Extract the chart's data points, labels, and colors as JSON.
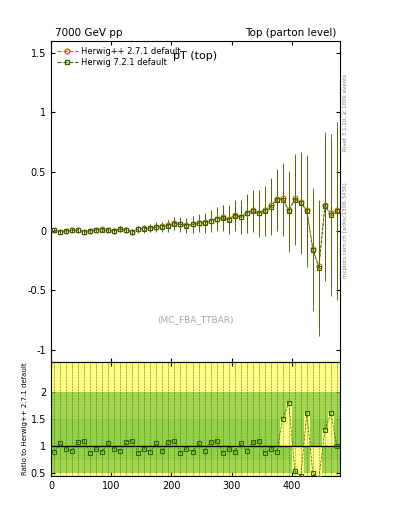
{
  "title_left": "7000 GeV pp",
  "title_right": "Top (parton level)",
  "plot_title": "pT (top)",
  "watermark": "(MC_FBA_TTBAR)",
  "right_label": "mcplots.cern.ch [arXiv:1306.3436]",
  "rivet_label": "Rivet 3.1.10, ≥ 100k events",
  "ylabel_ratio": "Ratio to Herwig++ 2.7.1 default",
  "ylim_main": [
    -1.1,
    1.6
  ],
  "ylim_ratio": [
    0.45,
    2.55
  ],
  "xlim": [
    0,
    480
  ],
  "yticks_main": [
    -1,
    -0.5,
    0,
    0.5,
    1,
    1.5
  ],
  "yticks_ratio": [
    0.5,
    1,
    1.5,
    2
  ],
  "series1_color": "#cc6600",
  "series2_color": "#336600",
  "series1_label": "Herwig++ 2.7.1 default",
  "series2_label": "Herwig 7.2.1 default",
  "band_yellow": "#ffff88",
  "band_green": "#88cc44",
  "x_values": [
    5,
    15,
    25,
    35,
    45,
    55,
    65,
    75,
    85,
    95,
    105,
    115,
    125,
    135,
    145,
    155,
    165,
    175,
    185,
    195,
    205,
    215,
    225,
    235,
    245,
    255,
    265,
    275,
    285,
    295,
    305,
    315,
    325,
    335,
    345,
    355,
    365,
    375,
    385,
    395,
    405,
    415,
    425,
    435,
    445,
    455,
    465,
    475
  ],
  "s1_y": [
    0.01,
    -0.005,
    0.002,
    0.008,
    0.005,
    -0.008,
    0.003,
    0.01,
    0.015,
    0.005,
    0.003,
    0.018,
    0.012,
    -0.008,
    0.018,
    0.022,
    0.028,
    0.035,
    0.038,
    0.048,
    0.065,
    0.058,
    0.048,
    0.058,
    0.068,
    0.072,
    0.088,
    0.105,
    0.115,
    0.098,
    0.135,
    0.118,
    0.155,
    0.175,
    0.155,
    0.178,
    0.215,
    0.272,
    0.275,
    0.178,
    0.275,
    0.245,
    0.178,
    -0.148,
    -0.298,
    0.218,
    0.148,
    0.178
  ],
  "s1_yerr": [
    0.018,
    0.015,
    0.015,
    0.015,
    0.015,
    0.015,
    0.015,
    0.018,
    0.018,
    0.018,
    0.02,
    0.022,
    0.022,
    0.025,
    0.028,
    0.03,
    0.033,
    0.036,
    0.04,
    0.045,
    0.05,
    0.055,
    0.06,
    0.065,
    0.07,
    0.075,
    0.082,
    0.09,
    0.1,
    0.11,
    0.12,
    0.13,
    0.15,
    0.16,
    0.18,
    0.19,
    0.22,
    0.24,
    0.28,
    0.31,
    0.35,
    0.39,
    0.43,
    0.47,
    0.52,
    0.57,
    0.62,
    0.68
  ],
  "s2_y": [
    0.008,
    -0.008,
    0.0,
    0.005,
    0.008,
    -0.01,
    0.002,
    0.008,
    0.012,
    0.008,
    0.0,
    0.015,
    0.01,
    -0.01,
    0.015,
    0.018,
    0.025,
    0.032,
    0.035,
    0.045,
    0.062,
    0.055,
    0.045,
    0.055,
    0.065,
    0.068,
    0.085,
    0.1,
    0.11,
    0.095,
    0.13,
    0.115,
    0.148,
    0.168,
    0.148,
    0.168,
    0.205,
    0.262,
    0.265,
    0.168,
    0.265,
    0.235,
    0.168,
    -0.158,
    -0.308,
    0.208,
    0.138,
    0.168
  ],
  "s2_yerr": [
    0.02,
    0.016,
    0.016,
    0.016,
    0.016,
    0.016,
    0.016,
    0.02,
    0.02,
    0.02,
    0.022,
    0.024,
    0.024,
    0.027,
    0.03,
    0.033,
    0.036,
    0.04,
    0.044,
    0.05,
    0.055,
    0.06,
    0.066,
    0.072,
    0.077,
    0.083,
    0.09,
    0.099,
    0.11,
    0.121,
    0.132,
    0.143,
    0.165,
    0.176,
    0.198,
    0.209,
    0.242,
    0.264,
    0.308,
    0.341,
    0.385,
    0.429,
    0.473,
    0.517,
    0.572,
    0.627,
    0.682,
    0.748
  ],
  "ratio_s2": [
    0.9,
    1.05,
    0.95,
    0.92,
    1.08,
    1.1,
    0.88,
    0.95,
    0.9,
    1.05,
    0.95,
    0.92,
    1.08,
    1.1,
    0.88,
    0.95,
    0.9,
    1.05,
    0.92,
    1.08,
    1.1,
    0.88,
    0.95,
    0.9,
    1.05,
    0.92,
    1.08,
    1.1,
    0.88,
    0.95,
    0.9,
    1.05,
    0.92,
    1.08,
    1.1,
    0.88,
    0.95,
    0.9,
    1.5,
    1.8,
    0.55,
    0.45,
    1.6,
    0.5,
    0.42,
    1.3,
    1.6,
    1.0
  ]
}
